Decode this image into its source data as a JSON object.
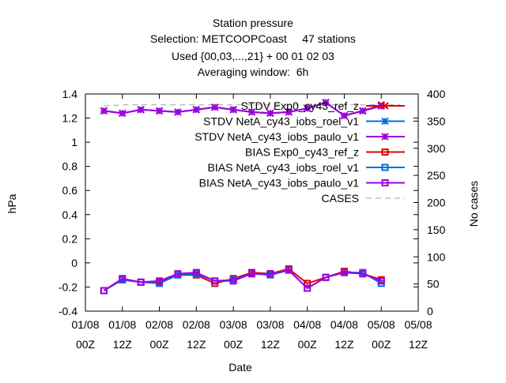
{
  "titles": {
    "line1": "Station pressure",
    "line2": "Selection: METCOOPCoast     47 stations",
    "line3": "Used {00,03,...,21} + 00 01 02 03",
    "line4": "Averaging window:  6h"
  },
  "colors": {
    "exp0": "#e00000",
    "roel": "#0070e0",
    "paulo": "#a000e0",
    "cases": "#a0a0a0"
  },
  "chart_data": {
    "type": "line",
    "xlabel": "Date",
    "ylabel": "hPa",
    "y2label": "No cases",
    "ylim": [
      -0.4,
      1.4
    ],
    "y2lim": [
      0,
      400
    ],
    "yticks": [
      "-0.4",
      "-0.2",
      "0",
      "0.2",
      "0.4",
      "0.6",
      "0.8",
      "1",
      "1.2",
      "1.4"
    ],
    "y2ticks": [
      "0",
      "50",
      "100",
      "150",
      "200",
      "250",
      "300",
      "350",
      "400"
    ],
    "xticks": [
      {
        "line1": "01/08",
        "line2": "00Z"
      },
      {
        "line1": "01/08",
        "line2": "12Z"
      },
      {
        "line1": "02/08",
        "line2": "00Z"
      },
      {
        "line1": "02/08",
        "line2": "12Z"
      },
      {
        "line1": "03/08",
        "line2": "00Z"
      },
      {
        "line1": "03/08",
        "line2": "12Z"
      },
      {
        "line1": "04/08",
        "line2": "00Z"
      },
      {
        "line1": "04/08",
        "line2": "12Z"
      },
      {
        "line1": "05/08",
        "line2": "00Z"
      },
      {
        "line1": "05/08",
        "line2": "12Z"
      }
    ],
    "xlim_hours": [
      0,
      108
    ],
    "x_hours": [
      6,
      12,
      18,
      24,
      30,
      36,
      42,
      48,
      54,
      60,
      66,
      72,
      78,
      84,
      90,
      96,
      102
    ],
    "legend_position": "top-right",
    "series": [
      {
        "name": "STDV Exp0_cy43_ref_z",
        "axis": "y1",
        "marker": "x",
        "color_key": "exp0",
        "values": [
          1.26,
          1.24,
          1.27,
          1.26,
          1.25,
          1.27,
          1.29,
          1.27,
          1.25,
          1.24,
          1.25,
          1.28,
          1.33,
          1.22,
          1.26,
          1.31,
          null
        ]
      },
      {
        "name": "STDV NetA_cy43_iobs_roel_v1",
        "axis": "y1",
        "marker": "asterisk",
        "color_key": "roel",
        "values": [
          1.26,
          1.24,
          1.27,
          1.26,
          1.25,
          1.27,
          1.29,
          1.27,
          1.25,
          1.24,
          1.25,
          1.28,
          1.33,
          1.22,
          1.26,
          1.3,
          null
        ]
      },
      {
        "name": "STDV NetA_cy43_iobs_paulo_v1",
        "axis": "y1",
        "marker": "asterisk",
        "color_key": "paulo",
        "values": [
          1.26,
          1.24,
          1.27,
          1.26,
          1.25,
          1.27,
          1.29,
          1.27,
          1.25,
          1.24,
          1.25,
          1.28,
          1.33,
          1.22,
          1.26,
          1.3,
          null
        ]
      },
      {
        "name": "BIAS Exp0_cy43_ref_z",
        "axis": "y1",
        "marker": "square",
        "color_key": "exp0",
        "values": [
          -0.23,
          -0.14,
          -0.16,
          -0.16,
          -0.1,
          -0.1,
          -0.17,
          -0.13,
          -0.08,
          -0.09,
          -0.05,
          -0.17,
          -0.12,
          -0.07,
          -0.09,
          -0.14,
          null
        ]
      },
      {
        "name": "BIAS NetA_cy43_iobs_roel_v1",
        "axis": "y1",
        "marker": "square",
        "color_key": "roel",
        "values": [
          -0.23,
          -0.14,
          -0.16,
          -0.17,
          -0.1,
          -0.09,
          -0.15,
          -0.14,
          -0.09,
          -0.1,
          -0.06,
          -0.21,
          -0.12,
          -0.08,
          -0.08,
          -0.17,
          null
        ]
      },
      {
        "name": "BIAS NetA_cy43_iobs_paulo_v1",
        "axis": "y1",
        "marker": "square",
        "color_key": "paulo",
        "values": [
          -0.23,
          -0.13,
          -0.16,
          -0.15,
          -0.09,
          -0.08,
          -0.15,
          -0.15,
          -0.09,
          -0.09,
          -0.06,
          -0.21,
          -0.12,
          -0.08,
          -0.09,
          -0.15,
          null
        ]
      },
      {
        "name": "CASES",
        "axis": "y2",
        "marker": "none",
        "dashed": true,
        "color_key": "cases",
        "values": [
          378,
          380,
          380,
          380,
          380,
          380,
          380,
          380,
          380,
          380,
          380,
          380,
          380,
          380,
          380,
          380,
          380
        ]
      }
    ]
  }
}
